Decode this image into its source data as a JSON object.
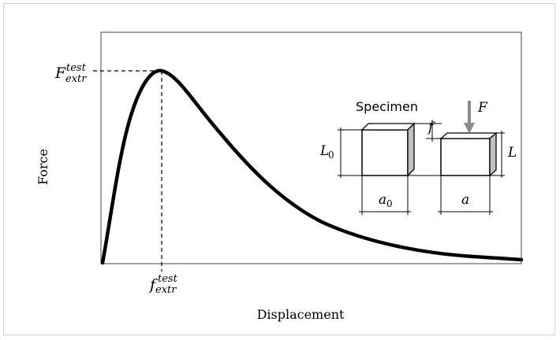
{
  "axes": {
    "ylabel": "Force",
    "xlabel": "Displacement"
  },
  "markers": {
    "f_extr_y": {
      "main": "F",
      "sup": "test",
      "sub": "extr"
    },
    "f_extr_x": {
      "main": "f",
      "sup": "test",
      "sub": "extr"
    }
  },
  "inset": {
    "title": "Specimen",
    "specimen_initial": {
      "height_label_main": "L",
      "height_label_sub": "0",
      "width_label_main": "a",
      "width_label_sub": "0"
    },
    "specimen_compressed": {
      "height_label": "L",
      "width_label": "a",
      "force_label": "F",
      "displacement_label": "f"
    }
  },
  "colors": {
    "curve": "#000000",
    "arrow": "#8a8a8a",
    "side_face": "#c0c0c0"
  }
}
